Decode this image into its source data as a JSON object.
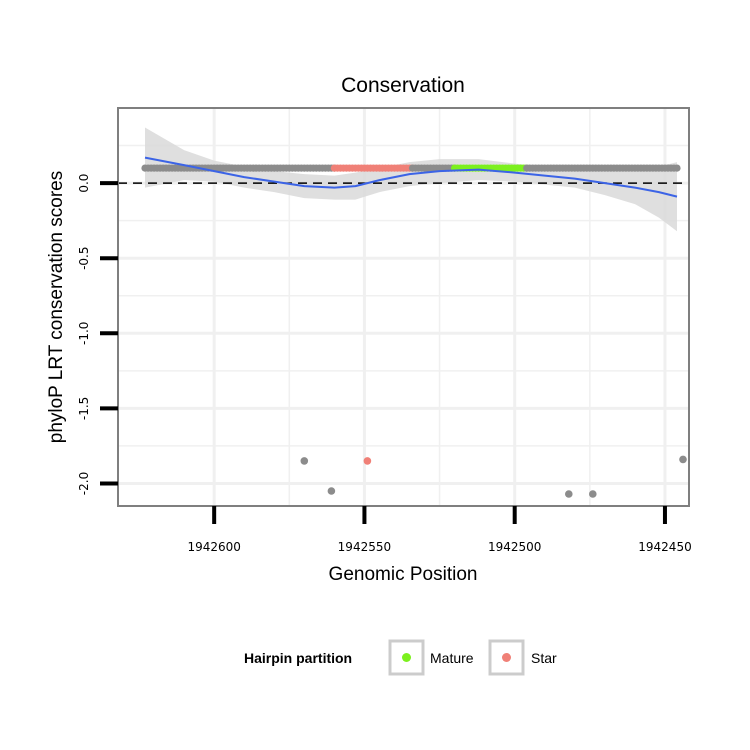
{
  "chart_data": {
    "type": "scatter",
    "title": "Conservation",
    "xlabel": "Genomic Position",
    "ylabel": "phyloP LRT conservation scores",
    "x_reversed": true,
    "xlim": [
      1942632,
      1942442
    ],
    "ylim": [
      -2.15,
      0.5
    ],
    "x_ticks": [
      1942600,
      1942550,
      1942500,
      1942450
    ],
    "x_tick_labels": [
      "1942600",
      "1942550",
      "1942500",
      "1942450"
    ],
    "y_ticks": [
      0.0,
      -0.5,
      -1.0,
      -1.5,
      -2.0
    ],
    "y_tick_labels": [
      "0.0",
      "-0.5",
      "-1.0",
      "-1.5",
      "-2.0"
    ],
    "x_minor_ticks": [
      1942575,
      1942525,
      1942475
    ],
    "y_minor_ticks": [
      0.25,
      -0.25,
      -0.75,
      -1.25,
      -1.75
    ],
    "grid": true,
    "reference_line": {
      "y": 0.0,
      "style": "dashed",
      "color": "#000000"
    },
    "legend": {
      "title": "Hairpin partition",
      "position": "bottom",
      "entries": [
        {
          "label": "Mature",
          "color": "#7cf01e"
        },
        {
          "label": "Star",
          "color": "#f08077"
        }
      ]
    },
    "colors": {
      "background": "#ffffff",
      "grid": "#f0f0f0",
      "panel_border": "#7f7f7f",
      "ribbon": "#d9d9d9",
      "smooth_line": "#3c64e6",
      "other_points": "#8c8c8c",
      "mature": "#7cf01e",
      "star": "#f08077"
    },
    "dense_band": {
      "y": 0.1,
      "segments": [
        {
          "group": "other",
          "x_start": 1942623,
          "x_end": 1942560
        },
        {
          "group": "star",
          "x_start": 1942560,
          "x_end": 1942534
        },
        {
          "group": "other",
          "x_start": 1942534,
          "x_end": 1942520
        },
        {
          "group": "mature",
          "x_start": 1942520,
          "x_end": 1942496
        },
        {
          "group": "other",
          "x_start": 1942496,
          "x_end": 1942446
        }
      ]
    },
    "outliers": [
      {
        "x": 1942570,
        "y": -1.85,
        "group": "other"
      },
      {
        "x": 1942561,
        "y": -2.05,
        "group": "other"
      },
      {
        "x": 1942549,
        "y": -1.85,
        "group": "star"
      },
      {
        "x": 1942482,
        "y": -2.07,
        "group": "other"
      },
      {
        "x": 1942474,
        "y": -2.07,
        "group": "other"
      },
      {
        "x": 1942444,
        "y": -1.84,
        "group": "other"
      }
    ],
    "smooth": {
      "x": [
        1942623,
        1942610,
        1942600,
        1942590,
        1942580,
        1942570,
        1942560,
        1942553,
        1942545,
        1942535,
        1942525,
        1942512,
        1942500,
        1942490,
        1942480,
        1942470,
        1942460,
        1942452,
        1942446
      ],
      "y": [
        0.17,
        0.12,
        0.08,
        0.04,
        0.01,
        -0.02,
        -0.03,
        -0.02,
        0.02,
        0.06,
        0.08,
        0.09,
        0.07,
        0.05,
        0.03,
        0.0,
        -0.03,
        -0.06,
        -0.09
      ],
      "ci_upper": [
        0.37,
        0.22,
        0.15,
        0.11,
        0.08,
        0.06,
        0.05,
        0.07,
        0.1,
        0.14,
        0.16,
        0.16,
        0.13,
        0.11,
        0.09,
        0.08,
        0.08,
        0.11,
        0.14
      ],
      "ci_lower": [
        -0.03,
        0.02,
        0.01,
        -0.03,
        -0.06,
        -0.1,
        -0.11,
        -0.11,
        -0.06,
        -0.02,
        0.0,
        0.02,
        0.01,
        -0.01,
        -0.03,
        -0.08,
        -0.14,
        -0.23,
        -0.32
      ]
    }
  }
}
